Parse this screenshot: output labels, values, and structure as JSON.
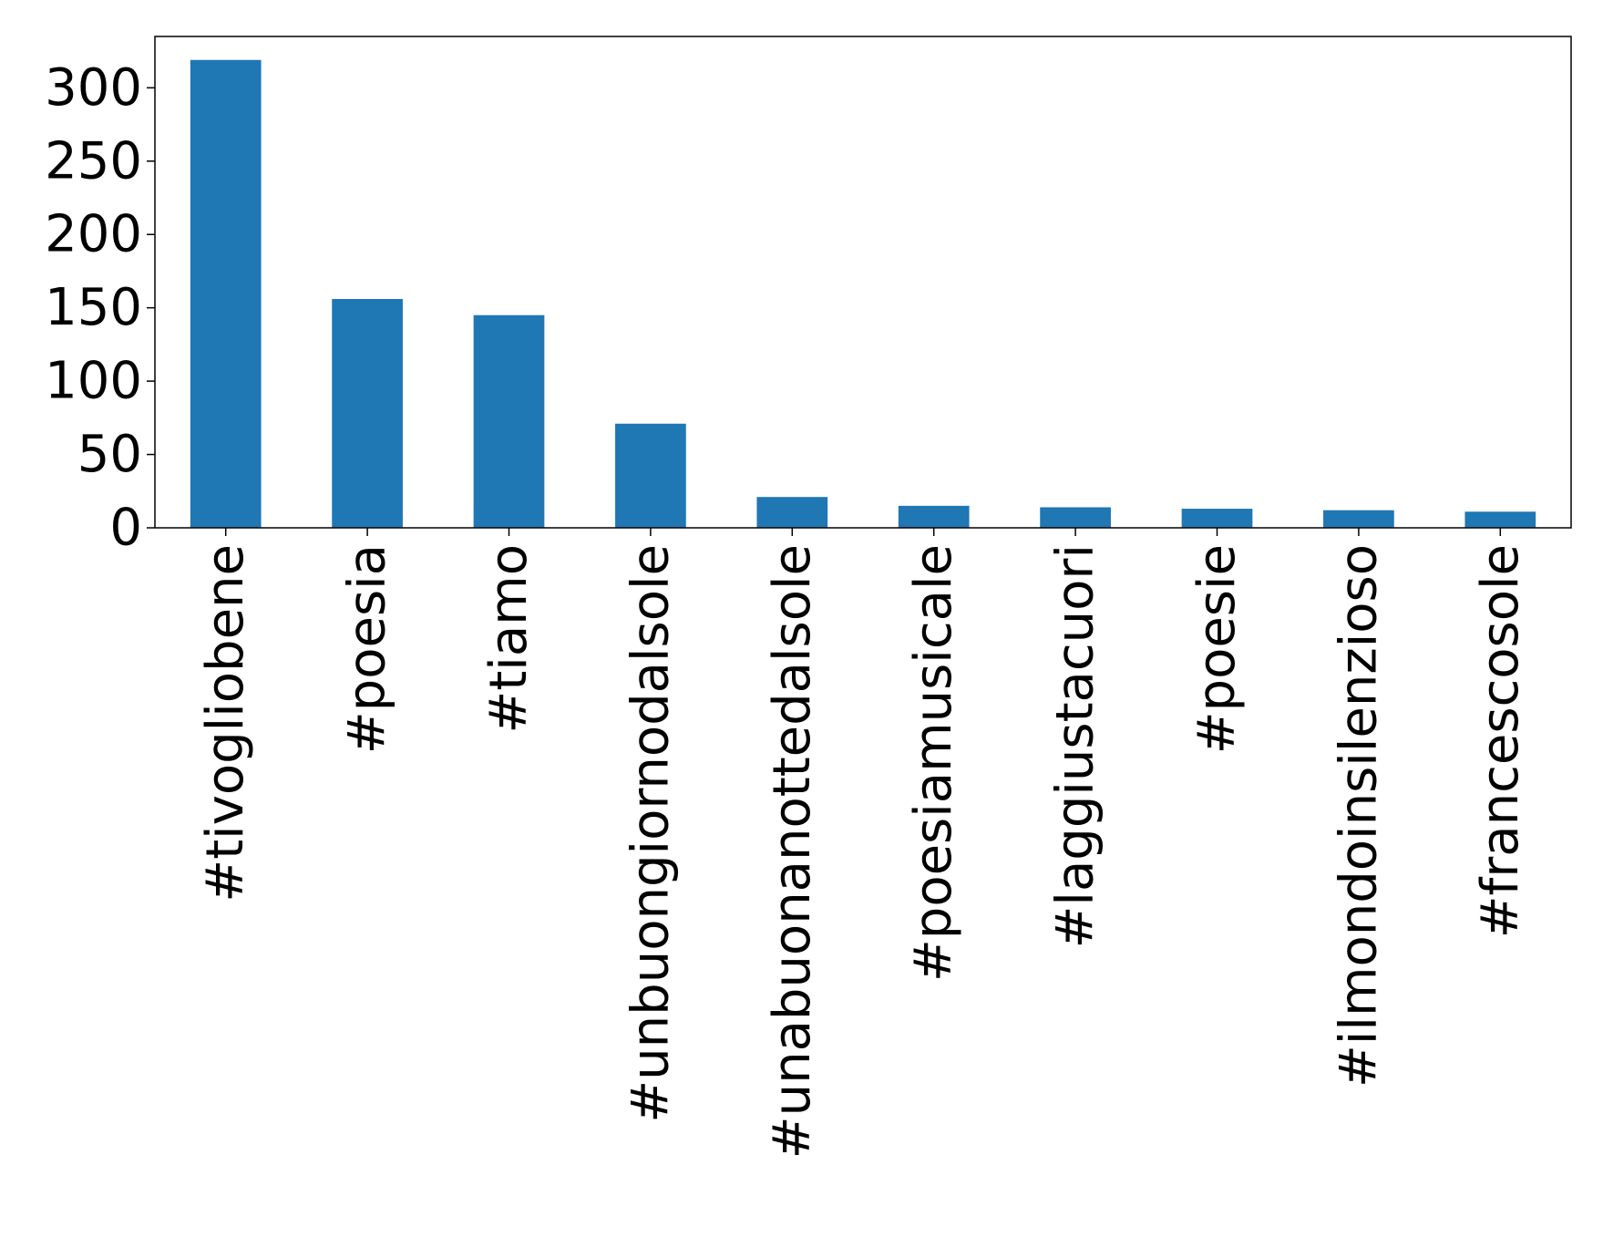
{
  "chart_data": {
    "type": "bar",
    "categories": [
      "#tivogliobene",
      "#poesia",
      "#tiamo",
      "#unbuongiornodalsole",
      "#unabuonanottedalsole",
      "#poesiamusicale",
      "#laggiustacuori",
      "#poesie",
      "#ilmondoinsilenzioso",
      "#francescosole"
    ],
    "values": [
      319,
      156,
      145,
      71,
      21,
      15,
      14,
      13,
      12,
      11
    ],
    "title": "",
    "xlabel": "",
    "ylabel": "",
    "ylim": [
      0,
      335
    ],
    "yticks": [
      0,
      50,
      100,
      150,
      200,
      250,
      300
    ],
    "grid": false,
    "legend": "none",
    "bar_color": "#1f77b4"
  }
}
